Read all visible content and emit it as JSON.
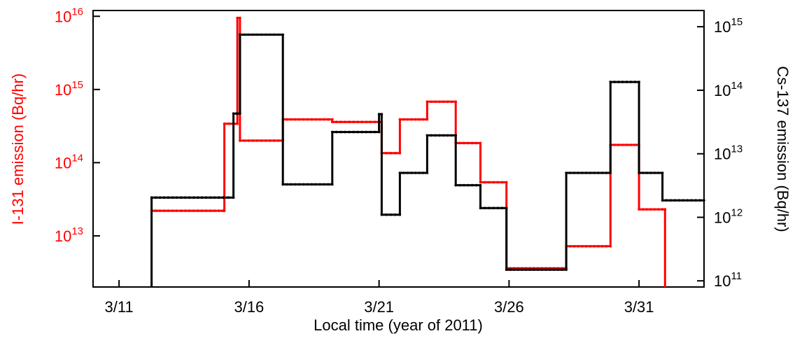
{
  "chart_data": {
    "type": "line",
    "xlabel": "Local time (year of 2011)",
    "ylabel_left": "I-131 emission (Bq/hr)",
    "ylabel_right": "Cs-137 emission (Bq/hr)",
    "x_unit": "day of March 2011",
    "xlim": [
      10,
      33.5
    ],
    "x_ticks": [
      {
        "value": 11,
        "label": "3/11"
      },
      {
        "value": 16,
        "label": "3/16"
      },
      {
        "value": 21,
        "label": "3/21"
      },
      {
        "value": 26,
        "label": "3/26"
      },
      {
        "value": 31,
        "label": "3/31"
      }
    ],
    "y_left": {
      "scale": "log",
      "ylim": [
        2000000000000.0,
        1.2e+16
      ],
      "color": "#ff0000",
      "ticks": [
        {
          "value": 10000000000000.0,
          "base": "10",
          "exp": "13"
        },
        {
          "value": 100000000000000.0,
          "base": "10",
          "exp": "14"
        },
        {
          "value": 1000000000000000.0,
          "base": "10",
          "exp": "15"
        },
        {
          "value": 1e+16,
          "base": "10",
          "exp": "16"
        }
      ]
    },
    "y_right": {
      "scale": "log",
      "ylim": [
        80000000000.0,
        1800000000000000.0
      ],
      "color": "#000000",
      "ticks": [
        {
          "value": 100000000000.0,
          "base": "10",
          "exp": "11"
        },
        {
          "value": 1000000000000.0,
          "base": "10",
          "exp": "12"
        },
        {
          "value": 10000000000000.0,
          "base": "10",
          "exp": "13"
        },
        {
          "value": 100000000000000.0,
          "base": "10",
          "exp": "14"
        },
        {
          "value": 1000000000000000.0,
          "base": "10",
          "exp": "15"
        }
      ]
    },
    "series": [
      {
        "axis": "left",
        "color": "#ff0000",
        "step_x": [
          12.25,
          15.0,
          15.05,
          15.4,
          15.55,
          15.65,
          17.3,
          19.2,
          21.0,
          21.1,
          21.8,
          22.85,
          23.95,
          24.9,
          25.9,
          26.95,
          28.2,
          29.9,
          31.0,
          31.9
        ],
        "step_y": [
          22000000000000.0,
          22000000000000.0,
          340000000000000.0,
          340000000000000.0,
          9500000000000000.0,
          200000000000000.0,
          390000000000000.0,
          360000000000000.0,
          360000000000000.0,
          135000000000000.0,
          390000000000000.0,
          680000000000000.0,
          185000000000000.0,
          54000000000000.0,
          3600000000000.0,
          3600000000000.0,
          7200000000000.0,
          175000000000000.0,
          23000000000000.0,
          23000000000000.0
        ],
        "drop_x": 31.9,
        "end_x": 32.0
      },
      {
        "axis": "right",
        "color": "#000000",
        "step_x": [
          12.25,
          15.0,
          15.4,
          15.65,
          17.3,
          19.2,
          21.0,
          21.1,
          21.8,
          22.85,
          23.95,
          24.9,
          25.9,
          26.95,
          28.2,
          29.9,
          31.0,
          31.9
        ],
        "step_y": [
          2050000000000.0,
          2050000000000.0,
          43000000000000.0,
          750000000000000.0,
          3300000000000.0,
          22000000000000.0,
          42000000000000.0,
          1100000000000.0,
          5000000000000.0,
          19500000000000.0,
          3200000000000.0,
          1400000000000.0,
          150000000000.0,
          150000000000.0,
          5000000000000.0,
          135000000000000.0,
          5000000000000.0,
          1850000000000.0
        ],
        "start_from_bottom": true,
        "end_x": 33.5
      }
    ]
  }
}
